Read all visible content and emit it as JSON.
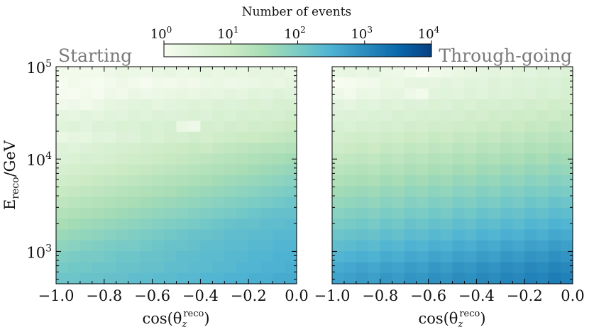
{
  "chart_data": {
    "type": "heatmap",
    "colorbar": {
      "title": "Number of events",
      "scale": "log",
      "range": [
        1,
        10000
      ],
      "tick_values": [
        1,
        10,
        100,
        1000,
        10000
      ],
      "tick_base": "10",
      "tick_exponents": [
        "0",
        "1",
        "2",
        "3",
        "4"
      ],
      "colormap": "GnBu",
      "colors": [
        "#f7fcf0",
        "#e0f3db",
        "#ccebc5",
        "#a8ddb5",
        "#7bccc4",
        "#4eb3d3",
        "#2b8cbe",
        "#0868ac",
        "#084081"
      ]
    },
    "x_bins": {
      "min": -1.0,
      "max": 0.0,
      "count": 20
    },
    "y_bins": {
      "min_log10": 2.65,
      "max_log10": 5.0,
      "count": 20
    },
    "xlim": [
      -1.0,
      0.0
    ],
    "ylim_log10": [
      2.65,
      5.0
    ],
    "ylabel": {
      "base": "E",
      "sub": "reco",
      "suffix": "/GeV"
    },
    "y_ticks": [
      {
        "log10": 3,
        "base": "10",
        "exp": "3"
      },
      {
        "log10": 4,
        "base": "10",
        "exp": "4"
      },
      {
        "log10": 5,
        "base": "10",
        "exp": "5"
      }
    ],
    "x_ticks": [
      {
        "value": -1.0,
        "label": "−1.0"
      },
      {
        "value": -0.8,
        "label": "−0.8"
      },
      {
        "value": -0.6,
        "label": "−0.6"
      },
      {
        "value": -0.4,
        "label": "−0.4"
      },
      {
        "value": -0.2,
        "label": "−0.2"
      },
      {
        "value": 0.0,
        "label": "0.0"
      }
    ],
    "panels": [
      {
        "name": "starting",
        "title": "Starting",
        "xlabel": {
          "base": "cos(θ",
          "sub": "z",
          "sup": "reco",
          "close": ")"
        },
        "log_counts_rows_top_to_bottom": [
          [
            0.1,
            0.1,
            0.12,
            0.1,
            0.2,
            0.3,
            0.25,
            0.2,
            0.3,
            0.35,
            0.25,
            0.3,
            0.4,
            0.3,
            0.35,
            0.3,
            0.4,
            0.35,
            0.4,
            0.3
          ],
          [
            0.0,
            0.1,
            0.05,
            0.0,
            0.1,
            0.2,
            0.1,
            0.05,
            0.15,
            0.1,
            0.2,
            0.15,
            0.25,
            0.3,
            0.2,
            0.25,
            0.3,
            0.35,
            0.3,
            0.4
          ],
          [
            0.05,
            0.0,
            0.1,
            0.05,
            0.2,
            0.15,
            0.3,
            0.2,
            0.25,
            0.3,
            0.35,
            0.3,
            0.4,
            0.35,
            0.45,
            0.4,
            0.5,
            0.45,
            0.55,
            0.5
          ],
          [
            0.15,
            0.2,
            0.1,
            0.25,
            0.35,
            0.4,
            0.45,
            0.5,
            0.4,
            0.45,
            0.5,
            0.55,
            0.5,
            0.6,
            0.55,
            0.6,
            0.65,
            0.6,
            0.7,
            0.7
          ],
          [
            0.4,
            0.35,
            0.45,
            0.4,
            0.5,
            0.45,
            0.55,
            0.5,
            0.6,
            0.55,
            0.6,
            0.65,
            0.6,
            0.7,
            0.65,
            0.75,
            0.7,
            0.8,
            0.75,
            0.85
          ],
          [
            0.5,
            0.55,
            0.45,
            0.6,
            0.55,
            0.65,
            0.6,
            0.7,
            0.65,
            0.75,
            0.3,
            0.2,
            0.8,
            0.75,
            0.85,
            0.8,
            0.9,
            0.85,
            0.95,
            1.0
          ],
          [
            0.3,
            0.4,
            0.35,
            0.5,
            0.45,
            0.6,
            0.55,
            0.7,
            0.65,
            0.8,
            0.75,
            0.85,
            0.8,
            0.9,
            0.95,
            1.0,
            1.0,
            1.05,
            1.1,
            1.15
          ],
          [
            0.55,
            0.5,
            0.6,
            0.65,
            0.7,
            0.75,
            0.8,
            0.85,
            0.9,
            0.95,
            1.0,
            1.05,
            1.0,
            1.1,
            1.15,
            1.2,
            1.25,
            1.3,
            1.3,
            1.35
          ],
          [
            0.6,
            0.65,
            0.75,
            0.7,
            0.8,
            0.85,
            0.9,
            0.95,
            1.0,
            1.05,
            1.1,
            1.15,
            1.2,
            1.25,
            1.3,
            1.35,
            1.4,
            1.45,
            1.5,
            1.55
          ],
          [
            0.75,
            0.8,
            0.85,
            0.9,
            0.95,
            1.0,
            1.05,
            1.1,
            1.15,
            1.2,
            1.25,
            1.3,
            1.35,
            1.4,
            1.45,
            1.5,
            1.55,
            1.6,
            1.65,
            1.7
          ],
          [
            0.9,
            0.95,
            1.0,
            1.05,
            1.1,
            1.15,
            1.2,
            1.25,
            1.3,
            1.35,
            1.4,
            1.45,
            1.5,
            1.55,
            1.6,
            1.65,
            1.7,
            1.75,
            1.8,
            1.85
          ],
          [
            1.05,
            1.1,
            1.15,
            1.2,
            1.25,
            1.3,
            1.35,
            1.4,
            1.45,
            1.5,
            1.55,
            1.6,
            1.65,
            1.7,
            1.75,
            1.8,
            1.85,
            1.9,
            1.95,
            2.0
          ],
          [
            1.2,
            1.25,
            1.3,
            1.35,
            1.4,
            1.45,
            1.5,
            1.55,
            1.6,
            1.65,
            1.7,
            1.75,
            1.8,
            1.85,
            1.9,
            1.95,
            2.0,
            2.05,
            2.1,
            2.15
          ],
          [
            1.35,
            1.4,
            1.45,
            1.5,
            1.55,
            1.6,
            1.65,
            1.7,
            1.75,
            1.8,
            1.85,
            1.9,
            1.95,
            2.0,
            2.05,
            2.1,
            2.15,
            2.2,
            2.25,
            2.25
          ],
          [
            1.5,
            1.55,
            1.6,
            1.65,
            1.7,
            1.75,
            1.8,
            1.85,
            1.9,
            1.95,
            2.0,
            2.05,
            2.1,
            2.15,
            2.2,
            2.25,
            2.25,
            2.3,
            2.3,
            2.35
          ],
          [
            1.65,
            1.7,
            1.75,
            1.8,
            1.85,
            1.9,
            1.95,
            2.0,
            2.05,
            2.1,
            2.15,
            2.2,
            2.2,
            2.25,
            2.3,
            2.3,
            2.35,
            2.35,
            2.4,
            2.4
          ],
          [
            1.8,
            1.85,
            1.9,
            1.95,
            2.0,
            2.05,
            2.05,
            2.1,
            2.15,
            2.2,
            2.2,
            2.25,
            2.3,
            2.3,
            2.35,
            2.35,
            2.4,
            2.4,
            2.45,
            2.45
          ],
          [
            1.95,
            2.0,
            2.05,
            2.05,
            2.1,
            2.15,
            2.15,
            2.2,
            2.2,
            2.25,
            2.3,
            2.3,
            2.35,
            2.35,
            2.4,
            2.4,
            2.45,
            2.45,
            2.5,
            2.5
          ],
          [
            2.05,
            2.1,
            2.1,
            2.15,
            2.15,
            2.2,
            2.2,
            2.25,
            2.25,
            2.3,
            2.3,
            2.35,
            2.35,
            2.4,
            2.4,
            2.45,
            2.45,
            2.5,
            2.5,
            2.55
          ],
          [
            2.15,
            2.15,
            2.2,
            2.2,
            2.25,
            2.25,
            2.3,
            2.3,
            2.35,
            2.35,
            2.4,
            2.4,
            2.45,
            2.45,
            2.5,
            2.5,
            2.55,
            2.55,
            2.6,
            2.6
          ]
        ]
      },
      {
        "name": "through-going",
        "title": "Through-going",
        "xlabel": {
          "base": "cos(θ",
          "sub": "z",
          "sup": "reco",
          "close": ")"
        },
        "log_counts_rows_top_to_bottom": [
          [
            0.3,
            0.35,
            0.3,
            0.4,
            0.25,
            0.2,
            0.1,
            0.0,
            0.1,
            0.2,
            0.3,
            0.35,
            0.4,
            0.45,
            0.4,
            0.5,
            0.45,
            0.55,
            0.5,
            0.6
          ],
          [
            0.0,
            0.05,
            0.1,
            0.15,
            0.3,
            0.25,
            0.35,
            0.4,
            0.35,
            0.45,
            0.4,
            0.5,
            0.45,
            0.55,
            0.5,
            0.6,
            0.55,
            0.65,
            0.6,
            0.7
          ],
          [
            0.2,
            0.1,
            0.3,
            0.25,
            0.35,
            0.4,
            0.2,
            0.1,
            0.45,
            0.5,
            0.45,
            0.55,
            0.5,
            0.6,
            0.55,
            0.65,
            0.6,
            0.7,
            0.65,
            0.75
          ],
          [
            0.45,
            0.4,
            0.5,
            0.45,
            0.55,
            0.5,
            0.6,
            0.55,
            0.65,
            0.6,
            0.7,
            0.65,
            0.75,
            0.7,
            0.8,
            0.75,
            0.85,
            0.8,
            0.9,
            0.85
          ],
          [
            0.55,
            0.6,
            0.55,
            0.65,
            0.6,
            0.7,
            0.65,
            0.75,
            0.7,
            0.8,
            0.75,
            0.85,
            0.8,
            0.9,
            0.85,
            0.95,
            0.9,
            1.0,
            0.95,
            1.05
          ],
          [
            0.7,
            0.65,
            0.75,
            0.7,
            0.8,
            0.75,
            0.85,
            0.8,
            0.9,
            0.85,
            0.95,
            0.9,
            1.0,
            0.95,
            1.05,
            1.0,
            1.1,
            1.05,
            1.15,
            1.1
          ],
          [
            0.8,
            0.85,
            0.9,
            0.85,
            0.95,
            0.9,
            1.0,
            0.95,
            1.05,
            1.0,
            1.1,
            1.05,
            1.15,
            1.1,
            1.2,
            1.15,
            1.25,
            1.2,
            1.3,
            1.25
          ],
          [
            0.95,
            1.0,
            1.05,
            1.0,
            1.1,
            1.05,
            1.15,
            1.1,
            1.2,
            1.15,
            1.25,
            1.2,
            1.3,
            1.25,
            1.35,
            1.3,
            1.4,
            1.35,
            1.45,
            1.4
          ],
          [
            1.1,
            1.15,
            1.2,
            1.15,
            1.25,
            1.2,
            1.3,
            1.25,
            1.35,
            1.3,
            1.4,
            1.35,
            1.45,
            1.4,
            1.5,
            1.45,
            1.55,
            1.5,
            1.6,
            1.55
          ],
          [
            1.25,
            1.3,
            1.35,
            1.3,
            1.4,
            1.35,
            1.45,
            1.4,
            1.5,
            1.45,
            1.55,
            1.5,
            1.6,
            1.55,
            1.65,
            1.6,
            1.7,
            1.65,
            1.75,
            1.7
          ],
          [
            1.4,
            1.45,
            1.5,
            1.45,
            1.55,
            1.5,
            1.6,
            1.55,
            1.65,
            1.6,
            1.7,
            1.65,
            1.75,
            1.7,
            1.8,
            1.75,
            1.85,
            1.8,
            1.9,
            1.85
          ],
          [
            1.55,
            1.6,
            1.65,
            1.6,
            1.7,
            1.65,
            1.75,
            1.7,
            1.8,
            1.75,
            1.85,
            1.8,
            1.9,
            1.85,
            1.95,
            1.9,
            2.0,
            1.95,
            2.05,
            2.0
          ],
          [
            1.7,
            1.75,
            1.8,
            1.75,
            1.85,
            1.8,
            1.9,
            1.85,
            1.95,
            1.9,
            2.0,
            1.95,
            2.05,
            2.0,
            2.1,
            2.05,
            2.15,
            2.1,
            2.2,
            2.15
          ],
          [
            1.85,
            1.9,
            1.95,
            1.9,
            2.0,
            1.95,
            2.05,
            2.0,
            2.1,
            2.05,
            2.15,
            2.1,
            2.2,
            2.15,
            2.25,
            2.2,
            2.3,
            2.25,
            2.35,
            2.3
          ],
          [
            2.0,
            2.05,
            2.1,
            2.05,
            2.15,
            2.1,
            2.2,
            2.15,
            2.25,
            2.2,
            2.3,
            2.25,
            2.35,
            2.3,
            2.4,
            2.35,
            2.45,
            2.4,
            2.5,
            2.45
          ],
          [
            2.15,
            2.2,
            2.25,
            2.2,
            2.3,
            2.25,
            2.35,
            2.3,
            2.4,
            2.35,
            2.45,
            2.4,
            2.5,
            2.45,
            2.55,
            2.5,
            2.6,
            2.55,
            2.65,
            2.6
          ],
          [
            2.3,
            2.35,
            2.4,
            2.35,
            2.45,
            2.4,
            2.5,
            2.45,
            2.55,
            2.5,
            2.6,
            2.55,
            2.65,
            2.6,
            2.7,
            2.65,
            2.75,
            2.7,
            2.8,
            2.75
          ],
          [
            2.45,
            2.5,
            2.55,
            2.5,
            2.6,
            2.55,
            2.65,
            2.6,
            2.7,
            2.65,
            2.75,
            2.7,
            2.8,
            2.75,
            2.85,
            2.8,
            2.9,
            2.85,
            2.95,
            2.9
          ],
          [
            2.6,
            2.65,
            2.7,
            2.65,
            2.75,
            2.7,
            2.8,
            2.75,
            2.85,
            2.8,
            2.9,
            2.85,
            2.95,
            2.9,
            3.0,
            2.95,
            3.05,
            3.0,
            3.1,
            3.05
          ],
          [
            2.7,
            2.75,
            2.8,
            2.75,
            2.85,
            2.8,
            2.9,
            2.85,
            2.95,
            2.9,
            3.0,
            2.95,
            3.05,
            3.0,
            3.1,
            3.05,
            3.15,
            3.1,
            3.2,
            3.15
          ]
        ]
      }
    ]
  }
}
